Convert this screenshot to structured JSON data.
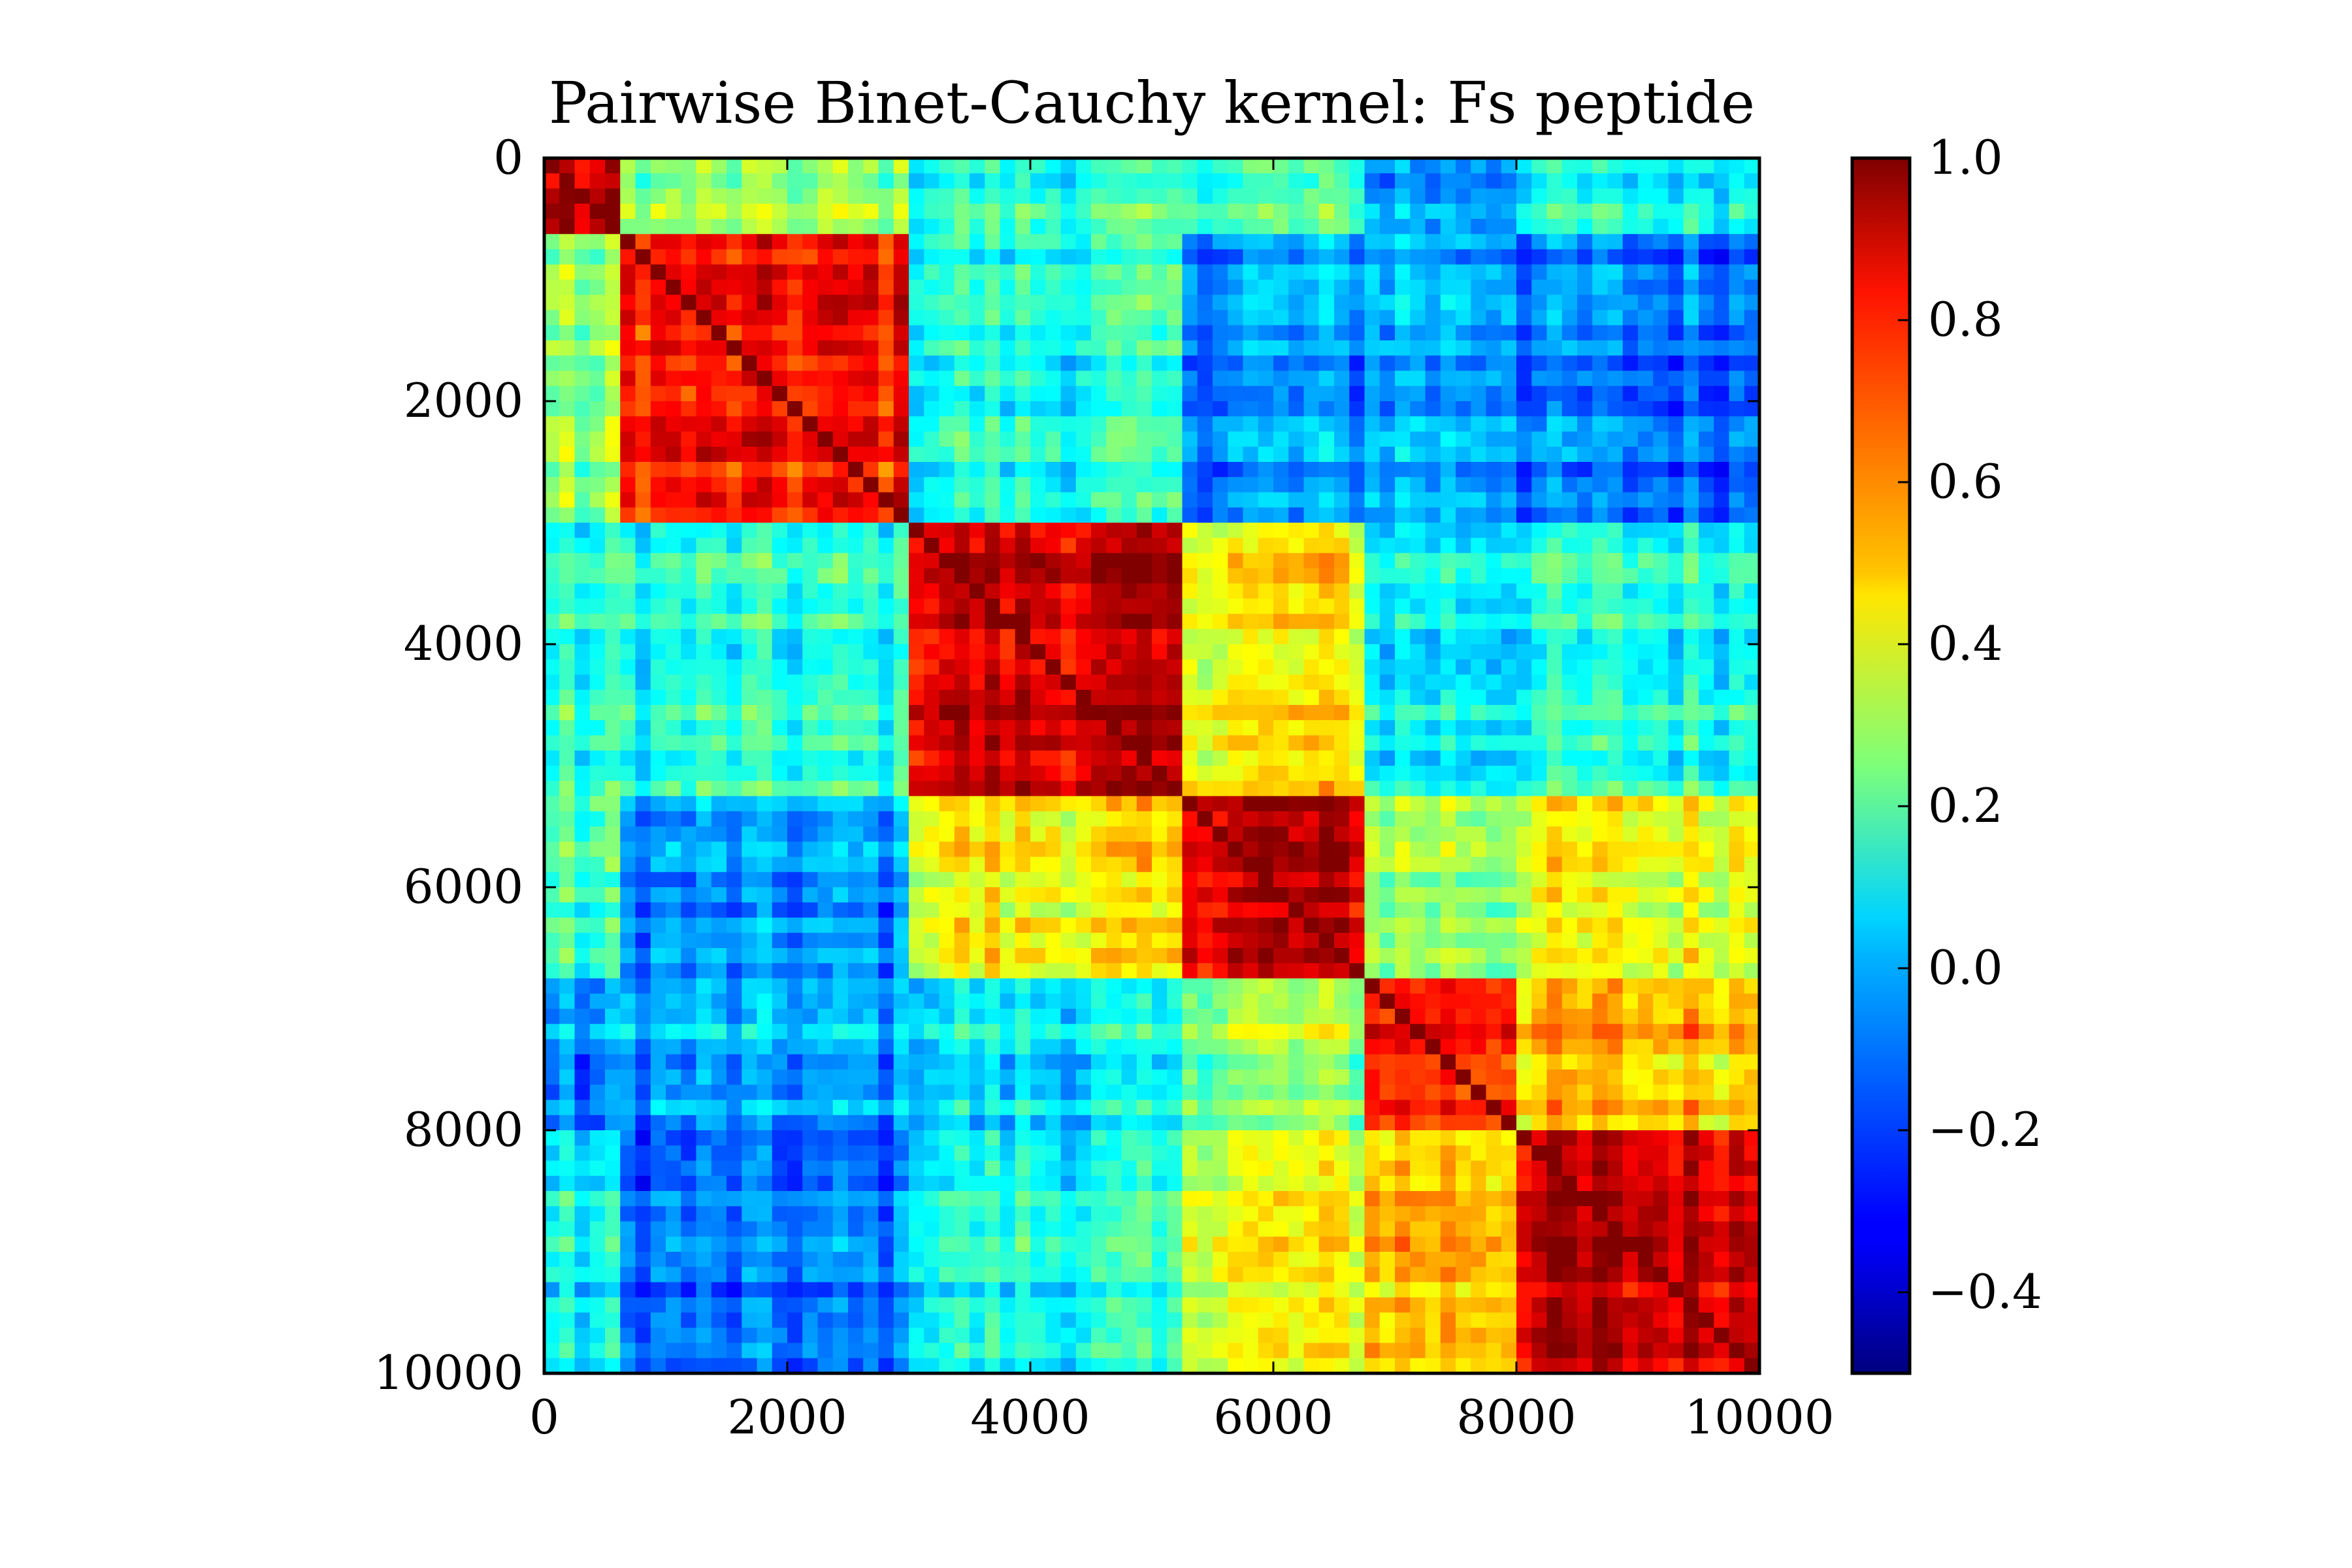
{
  "chart_data": {
    "type": "heatmap",
    "title": "Pairwise Binet-Cauchy kernel: Fs peptide",
    "xlabel": "",
    "ylabel": "",
    "xlim": [
      0,
      10000
    ],
    "ylim": [
      10000,
      0
    ],
    "x_ticks": [
      0,
      2000,
      4000,
      6000,
      8000,
      10000
    ],
    "y_ticks": [
      0,
      2000,
      4000,
      6000,
      8000,
      10000
    ],
    "x_tick_labels": [
      "0",
      "2000",
      "4000",
      "6000",
      "8000",
      "10000"
    ],
    "y_tick_labels": [
      "0",
      "2000",
      "4000",
      "6000",
      "8000",
      "10000"
    ],
    "colormap": "jet",
    "colorbar": {
      "range": [
        -0.5,
        1.0
      ],
      "ticks": [
        -0.4,
        -0.2,
        0.0,
        0.2,
        0.4,
        0.6,
        0.8,
        1.0
      ],
      "tick_labels": [
        "−0.4",
        "−0.2",
        "0.0",
        "0.2",
        "0.4",
        "0.6",
        "0.8",
        "1.0"
      ],
      "placement": "right"
    },
    "cluster_boundaries": [
      0,
      600,
      3000,
      5300,
      6800,
      8000,
      10000
    ],
    "cluster_block_values": [
      [
        0.85,
        0.25,
        0.1,
        0.15,
        -0.1,
        0.05
      ],
      [
        0.25,
        0.78,
        0.1,
        -0.1,
        -0.05,
        -0.15
      ],
      [
        0.1,
        0.1,
        0.88,
        0.45,
        0.05,
        0.1
      ],
      [
        0.15,
        -0.1,
        0.45,
        0.9,
        0.3,
        0.42
      ],
      [
        -0.1,
        -0.05,
        0.05,
        0.3,
        0.8,
        0.55
      ],
      [
        0.05,
        -0.15,
        0.1,
        0.42,
        0.55,
        0.9
      ]
    ]
  }
}
